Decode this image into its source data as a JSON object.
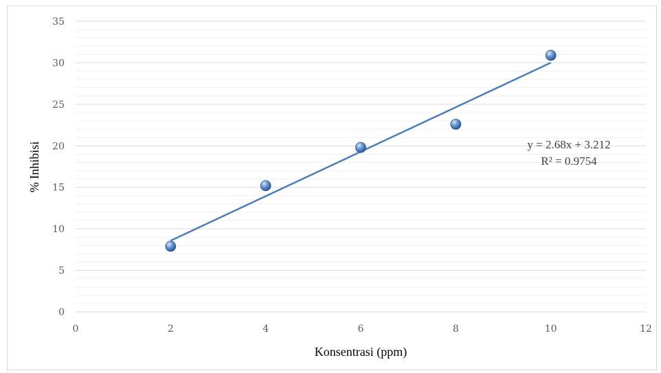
{
  "chart_data": {
    "type": "scatter",
    "x": [
      2,
      4,
      6,
      8,
      10
    ],
    "y": [
      7.9,
      15.2,
      19.8,
      22.6,
      30.9
    ],
    "xlabel": "Konsentrasi (ppm)",
    "ylabel": "% Inhibisi",
    "xlim": [
      0,
      12
    ],
    "ylim": [
      0,
      35
    ],
    "xticks": [
      0,
      2,
      4,
      6,
      8,
      10,
      12
    ],
    "yticks": [
      0,
      5,
      10,
      15,
      20,
      25,
      30,
      35
    ],
    "minor_grid_step": 1,
    "trendline": {
      "type": "linear",
      "slope": 2.68,
      "intercept": 3.212,
      "x_range": [
        2,
        10
      ],
      "equation": "y = 2.68x + 3.212",
      "r_squared": "R² = 0.9754"
    },
    "grid": true,
    "colors": {
      "marker": "#4f81bd",
      "trendline": "#4a7ebb",
      "major_grid": "#d9d9d9",
      "minor_grid": "#f0f0f0"
    }
  }
}
